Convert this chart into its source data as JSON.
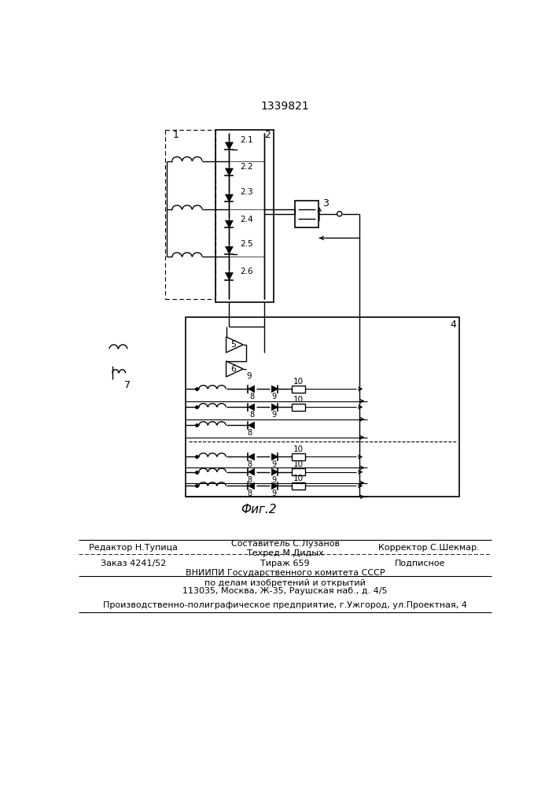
{
  "title": "1339821",
  "fig_label": "Фиг.2",
  "background": "#ffffff",
  "line_color": "#000000",
  "bottom_text": {
    "line1_left": "Редактор Н.Тупица",
    "line1_center": "Составитель С.Лузанов",
    "line1_center2": "Техред М.Дидых",
    "line1_right": "Корректор С.Шекмар.",
    "line2_left": "Заказ 4241/52",
    "line2_center": "Тираж 659",
    "line2_right": "Подписное",
    "line3": "ВНИИПИ Государственного комитета СССР",
    "line4": "по делам изобретений и открытий",
    "line5": "113035, Москва, Ж-35, Раушская наб., д. 4/5",
    "line6": "Производственно-полиграфическое предприятие, г.Ужгород, ул.Проектная, 4"
  }
}
